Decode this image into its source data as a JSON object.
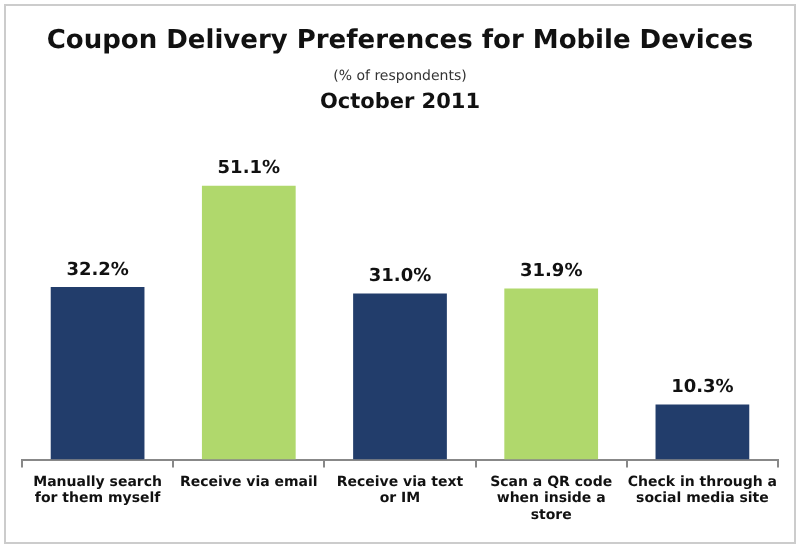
{
  "chart_data": {
    "type": "bar",
    "title": "Coupon Delivery Preferences for Mobile Devices",
    "subtitle": "(% of respondents)",
    "annotations": [
      "October 2011"
    ],
    "categories": [
      "Manually search for them myself",
      "Receive via email",
      "Receive via text or IM",
      "Scan a QR code when inside a store",
      "Check in through a social media site"
    ],
    "values": [
      32.2,
      51.1,
      31.0,
      31.9,
      10.3
    ],
    "value_labels": [
      "32.2%",
      "51.1%",
      "31.0%",
      "31.9%",
      "10.3%"
    ],
    "colors": [
      "#223d6b",
      "#b0d86c",
      "#223d6b",
      "#b0d86c",
      "#223d6b"
    ],
    "grid": false,
    "legend": false
  }
}
